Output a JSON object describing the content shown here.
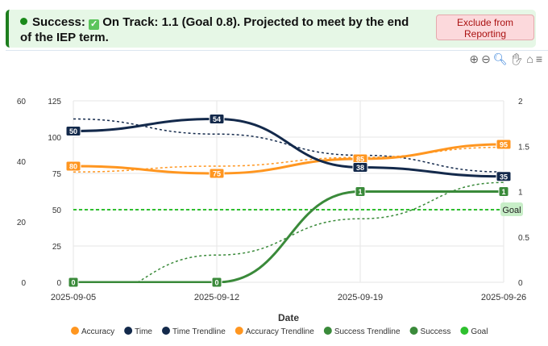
{
  "banner": {
    "status": "Success:",
    "message": "On Track: 1.1 (Goal 0.8). Projected to meet by the end of the IEP term.",
    "exclude_label": "Exclude from Reporting",
    "colors": {
      "bg": "#e6f7e6",
      "accent": "#1e7e1e"
    }
  },
  "toolbar": {
    "icons": [
      "zoom-in-icon",
      "zoom-out-icon",
      "selection-zoom-icon",
      "pan-icon",
      "home-icon",
      "menu-icon"
    ]
  },
  "chart_data": {
    "type": "line",
    "categories": [
      "2025-09-05",
      "2025-09-12",
      "2025-09-19",
      "2025-09-26"
    ],
    "xlabel": "Date",
    "axes": {
      "left_outer": {
        "range": [
          0,
          60
        ],
        "ticks": [
          0,
          20,
          40,
          60
        ]
      },
      "left_inner": {
        "range": [
          0,
          125
        ],
        "ticks": [
          0,
          25,
          50,
          75,
          100,
          125
        ]
      },
      "right": {
        "range": [
          0,
          2
        ],
        "ticks": [
          0,
          0.5,
          1,
          1.5,
          2
        ]
      }
    },
    "grid": true,
    "legend_placement": "bottom",
    "series": [
      {
        "name": "Accuracy",
        "axis": "left_inner",
        "values": [
          80,
          75,
          85,
          95
        ],
        "color": "#ff9620",
        "style": "solid",
        "labels": true
      },
      {
        "name": "Time",
        "axis": "left_outer",
        "values": [
          50,
          54,
          38,
          35
        ],
        "color": "#13294b",
        "style": "solid",
        "labels": true
      },
      {
        "name": "Time Trendline",
        "axis": "left_outer",
        "values": [
          54,
          49,
          42,
          36.5
        ],
        "color": "#13294b",
        "style": "dotted"
      },
      {
        "name": "Accuracy Trendline",
        "axis": "left_inner",
        "values": [
          76,
          80,
          86,
          93
        ],
        "color": "#ff9620",
        "style": "dotted"
      },
      {
        "name": "Success Trendline",
        "axis": "right",
        "values": [
          -0.2,
          0.3,
          0.7,
          1.1
        ],
        "color": "#3a8a3a",
        "style": "dotted"
      },
      {
        "name": "Success",
        "axis": "right",
        "values": [
          0,
          0,
          1,
          1
        ],
        "color": "#3a8a3a",
        "style": "solid",
        "labels": true
      },
      {
        "name": "Goal",
        "axis": "right",
        "values": [
          0.8,
          0.8,
          0.8,
          0.8
        ],
        "color": "#2ec02e",
        "style": "dashed",
        "annotation": "Goal"
      }
    ]
  }
}
